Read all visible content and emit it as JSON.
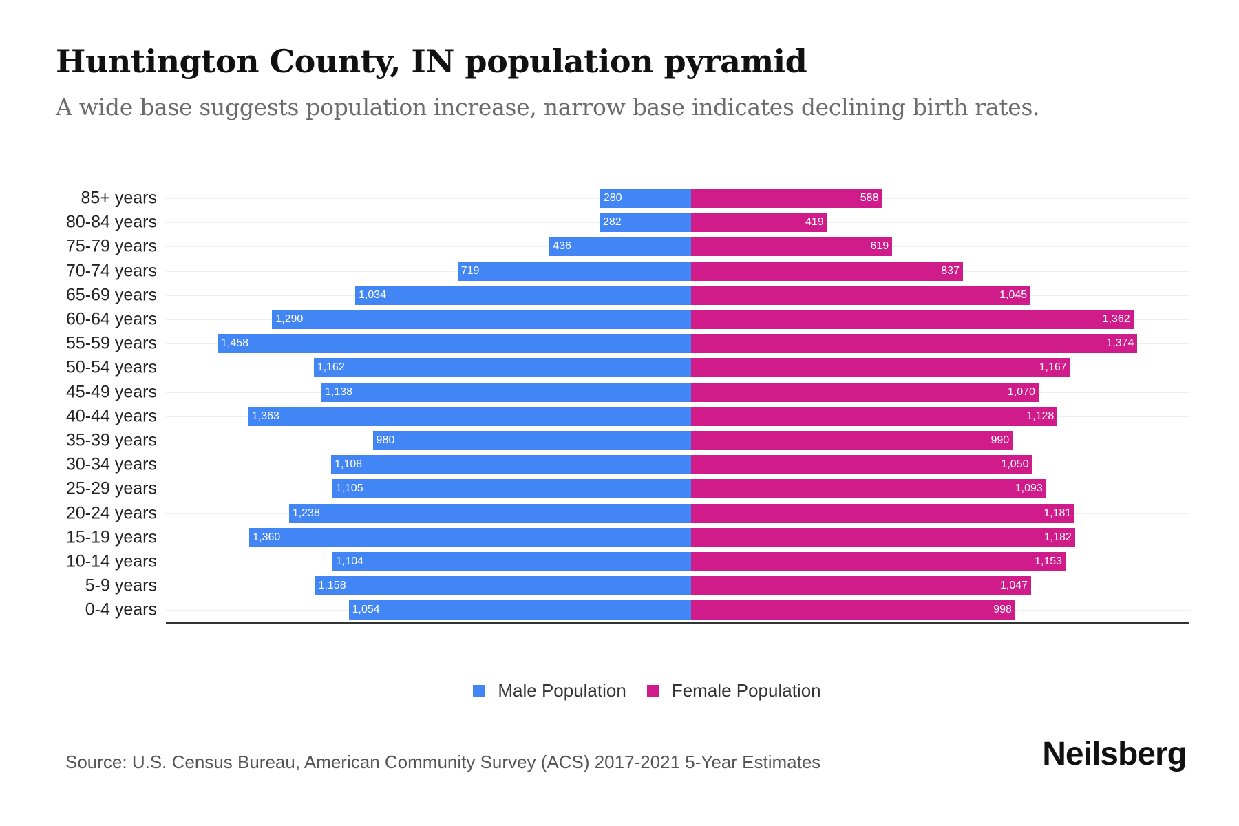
{
  "chart_data": {
    "type": "bar",
    "orientation": "horizontal-pyramid",
    "title": "Huntington County, IN population pyramid",
    "subtitle": "A wide base suggests population increase, narrow base indicates declining birth rates.",
    "categories": [
      "85+ years",
      "80-84 years",
      "75-79 years",
      "70-74 years",
      "65-69 years",
      "60-64 years",
      "55-59 years",
      "50-54 years",
      "45-49 years",
      "40-44 years",
      "35-39 years",
      "30-34 years",
      "25-29 years",
      "20-24 years",
      "15-19 years",
      "10-14 years",
      "5-9 years",
      "0-4 years"
    ],
    "series": [
      {
        "name": "Male Population",
        "color": "#4285f4",
        "values": [
          280,
          282,
          436,
          719,
          1034,
          1290,
          1458,
          1162,
          1138,
          1363,
          980,
          1108,
          1105,
          1238,
          1360,
          1104,
          1158,
          1054
        ]
      },
      {
        "name": "Female Population",
        "color": "#d01c8b",
        "values": [
          588,
          419,
          619,
          837,
          1045,
          1362,
          1374,
          1167,
          1070,
          1128,
          990,
          1050,
          1093,
          1181,
          1182,
          1153,
          1047,
          998
        ]
      }
    ],
    "xlim": [
      -1460,
      1460
    ],
    "grid": true,
    "legend_position": "bottom-center"
  },
  "footer": {
    "source": "Source: U.S. Census Bureau, American Community Survey (ACS) 2017-2021 5-Year Estimates",
    "logo": "Neilsberg"
  }
}
